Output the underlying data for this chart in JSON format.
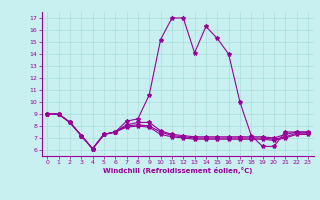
{
  "xlabel": "Windchill (Refroidissement éolien,°C)",
  "ylabel": "",
  "bg_color": "#c8f0f0",
  "line_color": "#990099",
  "grid_color": "#aadddd",
  "xlim": [
    -0.5,
    23.5
  ],
  "ylim": [
    5.5,
    17.5
  ],
  "yticks": [
    6,
    7,
    8,
    9,
    10,
    11,
    12,
    13,
    14,
    15,
    16,
    17
  ],
  "xticks": [
    0,
    1,
    2,
    3,
    4,
    5,
    6,
    7,
    8,
    9,
    10,
    11,
    12,
    13,
    14,
    15,
    16,
    17,
    18,
    19,
    20,
    21,
    22,
    23
  ],
  "line1": {
    "x": [
      0,
      1,
      2,
      3,
      4,
      5,
      6,
      7,
      8,
      9,
      10,
      11,
      12,
      13,
      14,
      15,
      16,
      17,
      18,
      19,
      20,
      21,
      22,
      23
    ],
    "y": [
      9,
      9,
      8.3,
      7.2,
      6.1,
      7.3,
      7.5,
      8.4,
      8.6,
      10.6,
      15.2,
      17.0,
      17.0,
      14.1,
      16.3,
      15.3,
      14.0,
      10.0,
      7.2,
      6.3,
      6.3,
      7.5,
      7.5,
      7.5
    ]
  },
  "line2": {
    "x": [
      0,
      1,
      2,
      3,
      4,
      5,
      6,
      7,
      8,
      9,
      10,
      11,
      12,
      13,
      14,
      15,
      16,
      17,
      18,
      19,
      20,
      21,
      22,
      23
    ],
    "y": [
      9,
      9,
      8.3,
      7.2,
      6.1,
      7.3,
      7.5,
      8.1,
      8.3,
      8.3,
      7.6,
      7.3,
      7.2,
      7.1,
      7.1,
      7.1,
      7.1,
      7.1,
      7.1,
      7.1,
      7.0,
      7.3,
      7.5,
      7.5
    ]
  },
  "line3": {
    "x": [
      0,
      1,
      2,
      3,
      4,
      5,
      6,
      7,
      8,
      9,
      10,
      11,
      12,
      13,
      14,
      15,
      16,
      17,
      18,
      19,
      20,
      21,
      22,
      23
    ],
    "y": [
      9,
      9,
      8.3,
      7.2,
      6.1,
      7.3,
      7.5,
      8.0,
      8.1,
      8.0,
      7.5,
      7.2,
      7.1,
      7.0,
      7.0,
      7.0,
      7.0,
      7.0,
      7.0,
      7.0,
      6.9,
      7.1,
      7.4,
      7.4
    ]
  },
  "line4": {
    "x": [
      0,
      1,
      2,
      3,
      4,
      5,
      6,
      7,
      8,
      9,
      10,
      11,
      12,
      13,
      14,
      15,
      16,
      17,
      18,
      19,
      20,
      21,
      22,
      23
    ],
    "y": [
      9,
      9,
      8.3,
      7.2,
      6.1,
      7.3,
      7.5,
      7.9,
      8.0,
      7.9,
      7.3,
      7.1,
      7.0,
      6.9,
      6.9,
      6.9,
      6.9,
      6.9,
      6.9,
      6.9,
      6.8,
      7.0,
      7.3,
      7.3
    ]
  },
  "figsize": [
    3.2,
    2.0
  ],
  "dpi": 100,
  "tick_fontsize": 4.5,
  "xlabel_fontsize": 5,
  "linewidth": 0.8,
  "markersize": 3
}
